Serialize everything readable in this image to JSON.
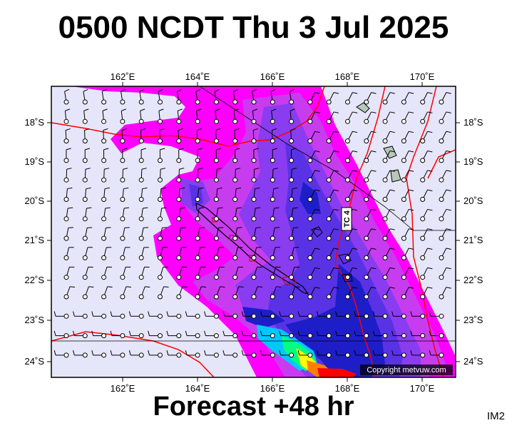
{
  "title": "0500 NCDT Thu 3 Jul 2025",
  "subtitle": "Forecast +48 hr",
  "image_code": "IM2",
  "copyright": "Copyright metvuw.com",
  "track_label": "TC 4",
  "map": {
    "lon_labels": [
      "162˚E",
      "164˚E",
      "166˚E",
      "168˚E",
      "170˚E"
    ],
    "lat_labels": [
      "18˚S",
      "19˚S",
      "20˚S",
      "21˚S",
      "22˚S",
      "23˚S",
      "24˚S"
    ],
    "background_color": "#e6e6fa",
    "rain_colors": [
      "#ff00ff",
      "#c83cf0",
      "#8a3cf0",
      "#5a32e6",
      "#1e1ec8",
      "#00c8ff",
      "#00ff80",
      "#ffff00",
      "#ff8000",
      "#ff0000"
    ],
    "border_color": "#ff0000"
  }
}
